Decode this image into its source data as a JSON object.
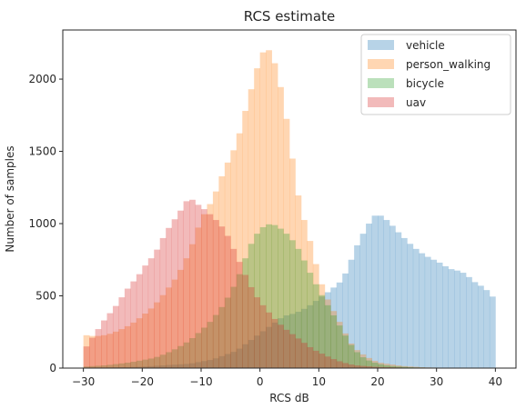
{
  "chart_data": {
    "type": "histogram",
    "title": "RCS estimate",
    "xlabel": "RCS dB",
    "ylabel": "Number of samples",
    "xlim": [
      -33.5,
      43.5
    ],
    "ylim": [
      0,
      2340
    ],
    "xticks": [
      -30,
      -20,
      -10,
      0,
      10,
      20,
      30,
      40
    ],
    "yticks": [
      0,
      500,
      1000,
      1500,
      2000
    ],
    "bin_width": 1.0,
    "bins_start": -30,
    "grid": false,
    "legend_position": "top-right",
    "series": [
      {
        "name": "vehicle",
        "color": "#1f77b4",
        "alpha": 0.32,
        "samples": [
          [
            -30,
            0
          ],
          [
            -20,
            10
          ],
          [
            -12,
            30
          ],
          [
            -8,
            60
          ],
          [
            -4,
            120
          ],
          [
            -2,
            180
          ],
          [
            0,
            240
          ],
          [
            2,
            300
          ],
          [
            4,
            360
          ],
          [
            6,
            380
          ],
          [
            8,
            420
          ],
          [
            10,
            480
          ],
          [
            12,
            540
          ],
          [
            14,
            610
          ],
          [
            15,
            700
          ],
          [
            16,
            800
          ],
          [
            17,
            900
          ],
          [
            18,
            960
          ],
          [
            19,
            1040
          ],
          [
            20,
            1070
          ],
          [
            21,
            1040
          ],
          [
            22,
            1010
          ],
          [
            23,
            960
          ],
          [
            24,
            920
          ],
          [
            25,
            880
          ],
          [
            26,
            840
          ],
          [
            27,
            810
          ],
          [
            28,
            780
          ],
          [
            29,
            760
          ],
          [
            30,
            740
          ],
          [
            31,
            720
          ],
          [
            32,
            690
          ],
          [
            33,
            680
          ],
          [
            34,
            670
          ],
          [
            35,
            650
          ],
          [
            36,
            610
          ],
          [
            37,
            580
          ],
          [
            38,
            560
          ],
          [
            39,
            520
          ],
          [
            40,
            470
          ]
        ]
      },
      {
        "name": "person_walking",
        "color": "#ff7f0e",
        "alpha": 0.32,
        "samples": [
          [
            -30,
            230
          ],
          [
            -28,
            220
          ],
          [
            -26,
            230
          ],
          [
            -24,
            260
          ],
          [
            -22,
            300
          ],
          [
            -20,
            360
          ],
          [
            -18,
            430
          ],
          [
            -16,
            530
          ],
          [
            -14,
            640
          ],
          [
            -12,
            800
          ],
          [
            -10,
            1030
          ],
          [
            -8,
            1170
          ],
          [
            -6,
            1380
          ],
          [
            -4,
            1550
          ],
          [
            -3,
            1700
          ],
          [
            -2,
            1860
          ],
          [
            -1,
            2000
          ],
          [
            0,
            2150
          ],
          [
            1,
            2220
          ],
          [
            2,
            2180
          ],
          [
            3,
            2040
          ],
          [
            4,
            1850
          ],
          [
            5,
            1600
          ],
          [
            6,
            1300
          ],
          [
            7,
            1090
          ],
          [
            8,
            960
          ],
          [
            9,
            800
          ],
          [
            10,
            640
          ],
          [
            11,
            520
          ],
          [
            12,
            430
          ],
          [
            13,
            360
          ],
          [
            14,
            280
          ],
          [
            15,
            200
          ],
          [
            16,
            140
          ],
          [
            18,
            80
          ],
          [
            20,
            40
          ],
          [
            24,
            15
          ],
          [
            28,
            5
          ],
          [
            32,
            2
          ],
          [
            40,
            0
          ]
        ]
      },
      {
        "name": "bicycle",
        "color": "#2ca02c",
        "alpha": 0.32,
        "samples": [
          [
            -30,
            10
          ],
          [
            -26,
            20
          ],
          [
            -22,
            40
          ],
          [
            -18,
            70
          ],
          [
            -16,
            100
          ],
          [
            -14,
            140
          ],
          [
            -12,
            190
          ],
          [
            -10,
            260
          ],
          [
            -8,
            340
          ],
          [
            -6,
            450
          ],
          [
            -4,
            600
          ],
          [
            -3,
            700
          ],
          [
            -2,
            820
          ],
          [
            -1,
            900
          ],
          [
            0,
            960
          ],
          [
            1,
            990
          ],
          [
            2,
            1000
          ],
          [
            3,
            980
          ],
          [
            4,
            950
          ],
          [
            5,
            910
          ],
          [
            6,
            860
          ],
          [
            7,
            790
          ],
          [
            8,
            700
          ],
          [
            9,
            620
          ],
          [
            10,
            540
          ],
          [
            11,
            470
          ],
          [
            12,
            400
          ],
          [
            13,
            330
          ],
          [
            14,
            260
          ],
          [
            15,
            190
          ],
          [
            16,
            130
          ],
          [
            17,
            90
          ],
          [
            18,
            60
          ],
          [
            20,
            30
          ],
          [
            22,
            15
          ],
          [
            26,
            5
          ],
          [
            30,
            2
          ],
          [
            40,
            0
          ]
        ]
      },
      {
        "name": "uav",
        "color": "#d62728",
        "alpha": 0.32,
        "samples": [
          [
            -30,
            120
          ],
          [
            -29,
            180
          ],
          [
            -28,
            240
          ],
          [
            -27,
            300
          ],
          [
            -26,
            360
          ],
          [
            -25,
            400
          ],
          [
            -24,
            460
          ],
          [
            -23,
            520
          ],
          [
            -22,
            580
          ],
          [
            -21,
            620
          ],
          [
            -20,
            680
          ],
          [
            -19,
            740
          ],
          [
            -18,
            780
          ],
          [
            -17,
            860
          ],
          [
            -16,
            940
          ],
          [
            -15,
            1000
          ],
          [
            -14,
            1060
          ],
          [
            -13,
            1120
          ],
          [
            -12,
            1190
          ],
          [
            -11,
            1140
          ],
          [
            -10,
            1120
          ],
          [
            -9,
            1080
          ],
          [
            -8,
            1050
          ],
          [
            -7,
            1000
          ],
          [
            -6,
            960
          ],
          [
            -5,
            870
          ],
          [
            -4,
            780
          ],
          [
            -3,
            690
          ],
          [
            -2,
            600
          ],
          [
            -1,
            520
          ],
          [
            0,
            460
          ],
          [
            1,
            410
          ],
          [
            2,
            360
          ],
          [
            3,
            320
          ],
          [
            4,
            280
          ],
          [
            5,
            250
          ],
          [
            6,
            220
          ],
          [
            7,
            190
          ],
          [
            8,
            160
          ],
          [
            9,
            130
          ],
          [
            10,
            110
          ],
          [
            12,
            70
          ],
          [
            14,
            40
          ],
          [
            16,
            20
          ],
          [
            20,
            8
          ],
          [
            26,
            2
          ],
          [
            40,
            0
          ]
        ]
      }
    ]
  }
}
